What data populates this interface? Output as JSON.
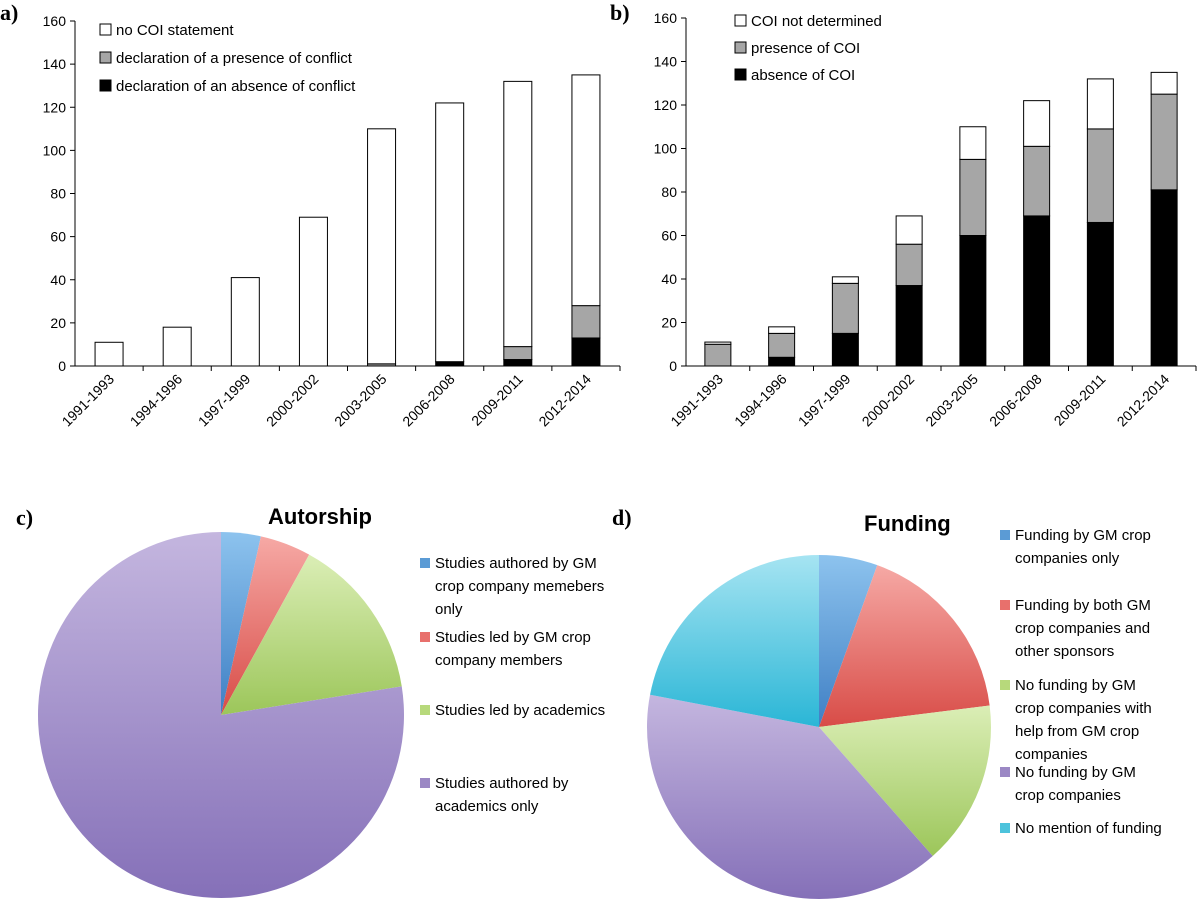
{
  "panels": {
    "a": "a)",
    "b": "b)",
    "c": "c)",
    "d": "d)"
  },
  "chart_data": [
    {
      "id": "a",
      "type": "bar",
      "stacked": true,
      "categories": [
        "1991-1993",
        "1994-1996",
        "1997-1999",
        "2000-2002",
        "2003-2005",
        "2006-2008",
        "2009-2011",
        "2012-2014"
      ],
      "series": [
        {
          "name": "declaration of an absence of conflict",
          "color": "#000000",
          "values": [
            0,
            0,
            0,
            0,
            0,
            2,
            3,
            13
          ]
        },
        {
          "name": "declaration of a presence of conflict",
          "color": "#a6a6a6",
          "values": [
            0,
            0,
            0,
            0,
            1,
            0,
            6,
            15
          ]
        },
        {
          "name": "no COI statement",
          "color": "#ffffff",
          "values": [
            11,
            18,
            41,
            69,
            109,
            120,
            123,
            107
          ]
        }
      ],
      "legend_order": [
        2,
        1,
        0
      ],
      "legend_placement": "top-left",
      "ylim": [
        0,
        160
      ],
      "yticks": [
        "0",
        "20",
        "40",
        "60",
        "80",
        "100",
        "120",
        "140",
        "160"
      ],
      "grid": false
    },
    {
      "id": "b",
      "type": "bar",
      "stacked": true,
      "categories": [
        "1991-1993",
        "1994-1996",
        "1997-1999",
        "2000-2002",
        "2003-2005",
        "2006-2008",
        "2009-2011",
        "2012-2014"
      ],
      "series": [
        {
          "name": "absence of COI",
          "color": "#000000",
          "values": [
            0,
            4,
            15,
            37,
            60,
            69,
            66,
            81
          ]
        },
        {
          "name": "presence of COI",
          "color": "#a6a6a6",
          "values": [
            10,
            11,
            23,
            19,
            35,
            32,
            43,
            44
          ]
        },
        {
          "name": "COI not determined",
          "color": "#ffffff",
          "values": [
            1,
            3,
            3,
            13,
            15,
            21,
            23,
            10
          ]
        }
      ],
      "legend_order": [
        2,
        1,
        0
      ],
      "legend_placement": "top-left",
      "ylim": [
        0,
        160
      ],
      "yticks": [
        "0",
        "20",
        "40",
        "60",
        "80",
        "100",
        "120",
        "140",
        "160"
      ],
      "grid": false
    },
    {
      "id": "c",
      "type": "pie",
      "title": "Autorship",
      "legend_placement": "right",
      "slices": [
        {
          "label": "Studies authored by GM crop company memebers only",
          "value": 3.5,
          "color": "#5b9bd5"
        },
        {
          "label": "Studies led by GM crop company members",
          "value": 4.5,
          "color": "#e8706c"
        },
        {
          "label": "Studies led by academics",
          "value": 14.5,
          "color": "#b7d97b"
        },
        {
          "label": "Studies authored by academics only",
          "value": 77.5,
          "color": "#9b88c4"
        }
      ]
    },
    {
      "id": "d",
      "type": "pie",
      "title": "Funding",
      "legend_placement": "right",
      "slices": [
        {
          "label": "Funding by GM crop companies only",
          "value": 5.5,
          "color": "#5b9bd5"
        },
        {
          "label": "Funding by both GM crop companies and other sponsors",
          "value": 17.5,
          "color": "#e8706c"
        },
        {
          "label": "No funding by GM crop companies with help from GM crop companies",
          "value": 15.5,
          "color": "#b7d97b"
        },
        {
          "label": "No funding by GM crop companies",
          "value": 39.5,
          "color": "#9b88c4"
        },
        {
          "label": "No mention of funding",
          "value": 22.0,
          "color": "#4dc3dc"
        }
      ]
    }
  ],
  "legend_wrapped": {
    "c": [
      [
        "Studies authored by GM",
        "crop company memebers",
        "only"
      ],
      [
        "Studies led by GM crop",
        "company members"
      ],
      [
        "Studies led by academics"
      ],
      [
        "Studies authored by",
        "academics only"
      ]
    ],
    "d": [
      [
        "Funding by GM crop",
        "companies only"
      ],
      [
        "Funding by both GM",
        "crop companies and",
        "other sponsors"
      ],
      [
        "No funding by GM",
        "crop companies with",
        "help from GM crop",
        "companies"
      ],
      [
        "No funding by GM",
        "crop companies"
      ],
      [
        "No mention of funding"
      ]
    ]
  },
  "colors": {
    "axis": "#000000",
    "bar_outline": "#000000"
  }
}
